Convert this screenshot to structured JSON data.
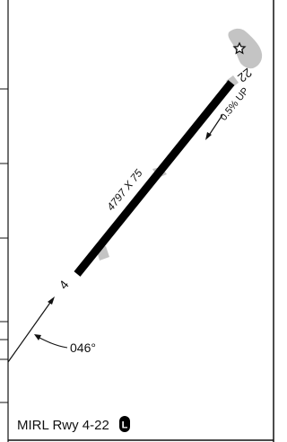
{
  "runway": {
    "dimensions": "4797 X 75",
    "end_sw": "4",
    "end_ne": "22",
    "gradient": "0.5% UP"
  },
  "bearing": "046°",
  "footer": {
    "lighting": "MIRL Rwy 4-22",
    "badge": "L"
  },
  "colors": {
    "runway": "#000000",
    "terrain": "#c4c4c4",
    "frame": "#111111"
  },
  "icons": [
    "beacon-star-icon",
    "lighting-badge-icon"
  ]
}
